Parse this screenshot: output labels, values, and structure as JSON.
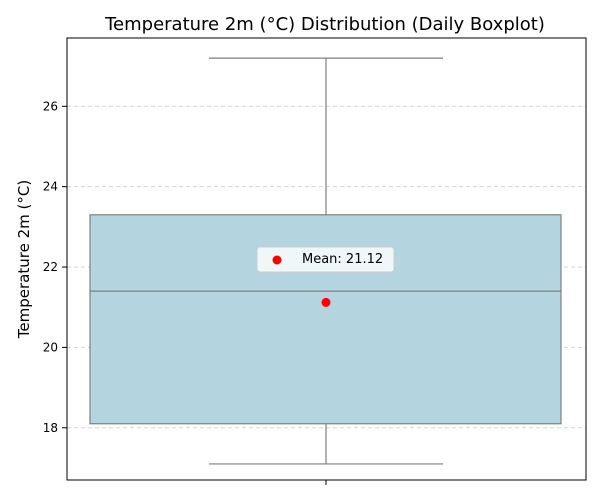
{
  "chart_data": {
    "type": "box",
    "title": "Temperature 2m (°C) Distribution (Daily Boxplot)",
    "xlabel": "",
    "ylabel": "Temperature 2m (°C)",
    "ylim": [
      16.7,
      27.7
    ],
    "yticks": [
      18,
      20,
      22,
      24,
      26
    ],
    "grid": {
      "axis": "y",
      "style": "dashed"
    },
    "legend": {
      "placement": "center",
      "label": "Mean: 21.12"
    },
    "box": {
      "whisker_low": 17.1,
      "q1": 18.1,
      "median": 21.4,
      "q3": 23.3,
      "whisker_high": 27.2,
      "mean": 21.12
    },
    "colors": {
      "box_fill": "#b4d5df",
      "box_edge": "#7f7f7f",
      "mean_marker": "#ff0000",
      "grid": "#d3d3d3"
    }
  }
}
